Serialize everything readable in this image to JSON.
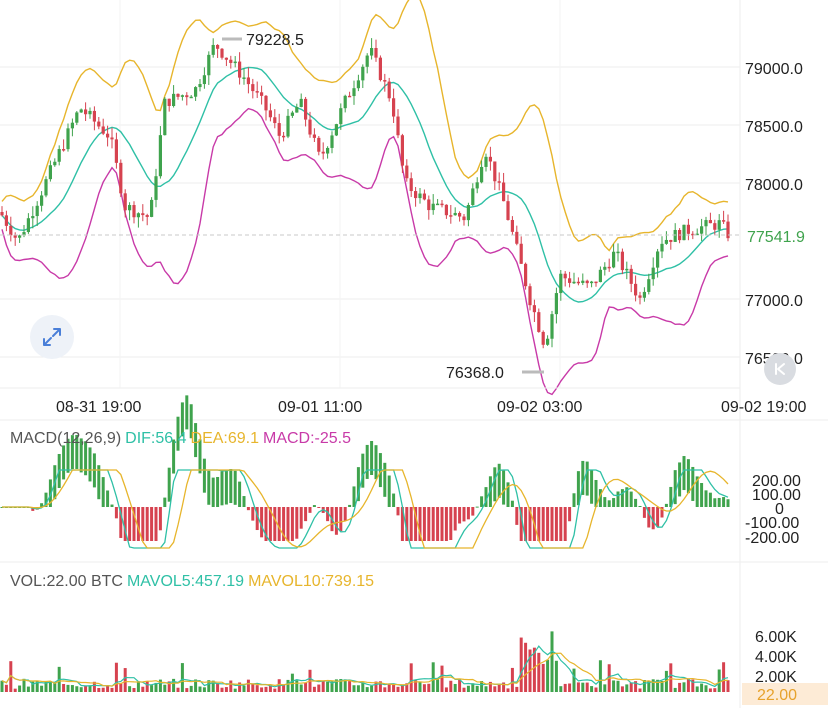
{
  "chart": {
    "price_axis_labels": [
      "79000.0",
      "78500.0",
      "78000.0",
      "77000.0",
      "76500.0"
    ],
    "price_axis_values": [
      79000,
      78500,
      78000,
      77000,
      76500
    ],
    "current_price_label": "77541.9",
    "current_price": 77541.9,
    "high_marker": "79228.5",
    "low_marker": "76368.0",
    "time_labels": [
      "08-31 19:00",
      "09-01 11:00",
      "09-02 03:00",
      "09-02 19:00"
    ],
    "macd_axis_labels": [
      "200.00",
      "100.00",
      "0",
      "-100.00",
      "-200.00"
    ],
    "vol_axis_labels": [
      "6.00K",
      "4.00K",
      "2.00K"
    ],
    "vol_current_label": "22.00"
  },
  "macd_legend": {
    "label": "MACD(12,26,9)",
    "dif": "DIF:56.4",
    "dea": "DEA:69.1",
    "macd": "MACD:-25.5"
  },
  "vol_legend": {
    "label": "VOL:22.00 BTC",
    "mavol5": "MAVOL5:457.19",
    "mavol10": "MAVOL10:739.15"
  },
  "colors": {
    "up": "#3fa34d",
    "down": "#d6424f",
    "middle_band": "#2fc0a6",
    "upper_band": "#e7b52c",
    "lower_band": "#c83aa8",
    "current_price": "#3fa34d",
    "axis_text": "#222222",
    "grid": "#eeeeee"
  },
  "icons": {
    "expand": "expand-arrows-icon",
    "scroll_latest": "scroll-to-latest-icon"
  }
}
